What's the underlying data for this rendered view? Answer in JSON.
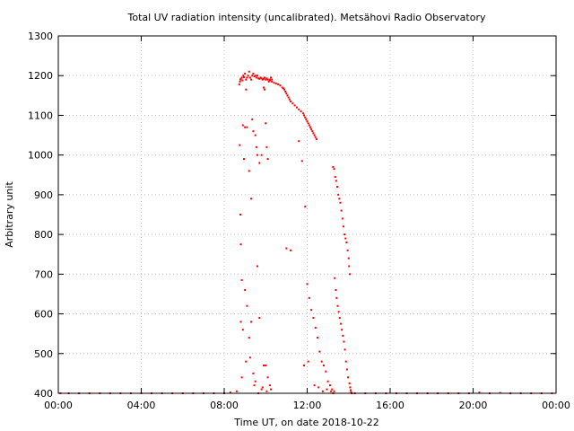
{
  "chart_data": {
    "type": "scatter",
    "title": "Total UV radiation intensity (uncalibrated). Metsähovi Radio Observatory",
    "xlabel": "Time UT, on date 2018-10-22",
    "ylabel": "Arbitrary unit",
    "xlim": [
      0,
      24
    ],
    "ylim": [
      400,
      1300
    ],
    "x_tick_labels": [
      "00:00",
      "04:00",
      "08:00",
      "12:00",
      "16:00",
      "20:00",
      "00:00"
    ],
    "x_tick_values": [
      0,
      4,
      8,
      12,
      16,
      20,
      24
    ],
    "y_ticks": [
      400,
      500,
      600,
      700,
      800,
      900,
      1000,
      1100,
      1200,
      1300
    ],
    "grid": true,
    "marker_color": "#ff0000",
    "series": [
      {
        "x": [
          8.73,
          8.76,
          8.78,
          8.8,
          8.85,
          8.88,
          8.92,
          8.95,
          9.0,
          9.05,
          9.1,
          9.15,
          9.2,
          9.25,
          9.3,
          9.35,
          9.4,
          9.45,
          9.5,
          9.55,
          9.6,
          9.65,
          9.7,
          9.75,
          9.8,
          9.85,
          9.9,
          9.95,
          10.0,
          10.05,
          10.1,
          10.2,
          10.3,
          10.4,
          10.5,
          10.6,
          10.7,
          10.8,
          10.85,
          10.9,
          10.95,
          11.0,
          11.05,
          11.1,
          11.15,
          11.2,
          11.3,
          11.4,
          11.5,
          11.6,
          11.7,
          11.8,
          11.85,
          11.9,
          11.95,
          12.0,
          12.05,
          12.1,
          12.15,
          12.2,
          12.25,
          12.3,
          12.35,
          12.4,
          12.45,
          8.75,
          8.78,
          8.8,
          8.85,
          8.9,
          8.95,
          9.0,
          9.05,
          9.1,
          9.2,
          9.3,
          9.35,
          9.4,
          9.5,
          9.55,
          9.6,
          9.7,
          9.8,
          9.9,
          9.95,
          10.0,
          10.05,
          10.1,
          10.15,
          10.2,
          10.25,
          10.3,
          8.8,
          8.9,
          9.0,
          9.1,
          9.2,
          9.3,
          9.4,
          9.5,
          9.6,
          9.7,
          9.8,
          9.9,
          10.0,
          10.1,
          10.2,
          8.85,
          9.05,
          9.25,
          9.45,
          9.65,
          9.85,
          10.05,
          10.25,
          11.0,
          11.2,
          11.6,
          11.75,
          11.9,
          12.0,
          12.1,
          12.2,
          12.3,
          12.4,
          12.5,
          12.6,
          12.7,
          12.8,
          12.9,
          13.0,
          13.1,
          13.2,
          13.3,
          11.85,
          12.05,
          12.35,
          12.55,
          12.75,
          12.95,
          13.15,
          13.25,
          13.25,
          13.3,
          13.35,
          13.4,
          13.45,
          13.5,
          13.55,
          13.6,
          13.65,
          13.7,
          13.75,
          13.8,
          13.85,
          13.9,
          13.95,
          14.0,
          14.02,
          14.05,
          13.33,
          13.38,
          13.42,
          13.47,
          13.52,
          13.57,
          13.62,
          13.67,
          13.72,
          13.77,
          13.82,
          13.87,
          13.92,
          13.97,
          14.04,
          14.07,
          14.1,
          14.12,
          14.15,
          0.1,
          0.5,
          1.0,
          1.5,
          2.0,
          2.5,
          3.0,
          3.5,
          4.0,
          4.5,
          5.0,
          5.5,
          6.0,
          6.5,
          7.0,
          7.5,
          8.0,
          8.3,
          8.6,
          14.3,
          14.8,
          15.3,
          15.8,
          16.3,
          16.8,
          17.3,
          17.8,
          18.3,
          18.8,
          19.3,
          19.8,
          20.3,
          20.8,
          21.3,
          21.8,
          22.3,
          22.8,
          23.3,
          23.8
        ],
        "y": [
          1178,
          1185,
          1190,
          1192,
          1195,
          1188,
          1200,
          1196,
          1205,
          1190,
          1195,
          1200,
          1210,
          1195,
          1190,
          1200,
          1205,
          1198,
          1200,
          1195,
          1200,
          1193,
          1192,
          1195,
          1193,
          1190,
          1192,
          1195,
          1190,
          1193,
          1190,
          1188,
          1185,
          1182,
          1180,
          1178,
          1175,
          1170,
          1168,
          1165,
          1160,
          1155,
          1150,
          1145,
          1140,
          1135,
          1130,
          1125,
          1120,
          1115,
          1110,
          1105,
          1100,
          1095,
          1090,
          1085,
          1080,
          1075,
          1070,
          1065,
          1060,
          1055,
          1050,
          1045,
          1040,
          1025,
          850,
          775,
          685,
          1075,
          990,
          1070,
          1165,
          1070,
          960,
          890,
          1090,
          1060,
          1050,
          1020,
          1000,
          980,
          1000,
          1170,
          1165,
          1080,
          1020,
          990,
          1185,
          1190,
          1195,
          1190,
          580,
          560,
          660,
          620,
          540,
          580,
          450,
          430,
          720,
          590,
          410,
          470,
          470,
          440,
          420,
          440,
          480,
          490,
          420,
          400,
          415,
          405,
          410,
          765,
          760,
          1035,
          985,
          870,
          675,
          640,
          610,
          590,
          565,
          540,
          505,
          480,
          470,
          455,
          430,
          420,
          410,
          405,
          470,
          480,
          420,
          415,
          405,
          410,
          405,
          400,
          970,
          965,
          945,
          935,
          920,
          900,
          890,
          880,
          860,
          840,
          820,
          800,
          790,
          780,
          760,
          740,
          720,
          700,
          690,
          660,
          640,
          620,
          605,
          590,
          575,
          560,
          545,
          530,
          510,
          480,
          460,
          440,
          425,
          415,
          408,
          403,
          400,
          400,
          400,
          400,
          400,
          400,
          400,
          400,
          400,
          400,
          400,
          400,
          400,
          400,
          400,
          400,
          400,
          400,
          402,
          405,
          400,
          400,
          400,
          400,
          400,
          400,
          400,
          400,
          400,
          400,
          400,
          400,
          402,
          400,
          401,
          400,
          400,
          400,
          400,
          400
        ]
      }
    ]
  }
}
